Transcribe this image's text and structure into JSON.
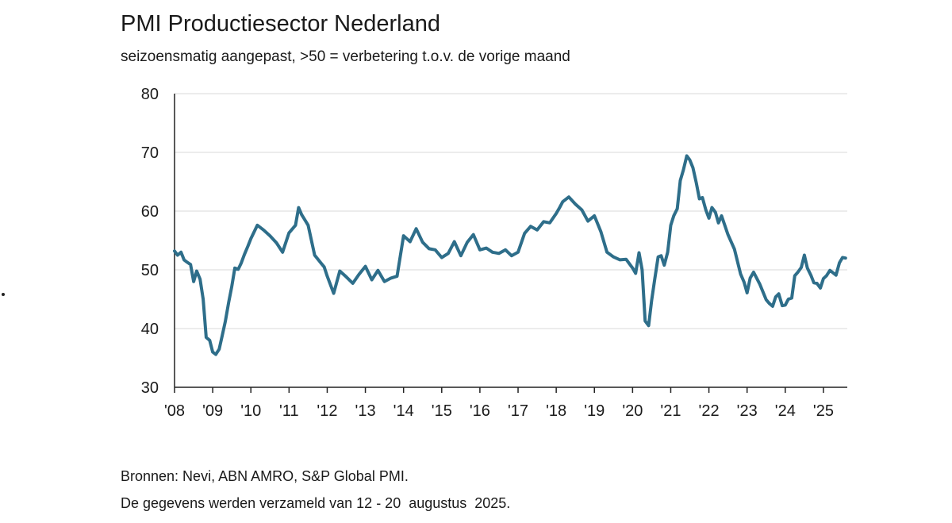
{
  "chart_data": {
    "type": "line",
    "title": "PMI Productiesector Nederland",
    "subtitle": "seizoensmatig aangepast, >50 = verbetering t.o.v. de vorige maand",
    "xlabel": "",
    "ylabel": "",
    "xlim": [
      2008.0,
      2025.625
    ],
    "ylim": [
      30,
      80
    ],
    "yticks": [
      30,
      40,
      50,
      60,
      70,
      80
    ],
    "xtick_labels": [
      "'08",
      "'09",
      "'10",
      "'11",
      "'12",
      "'13",
      "'14",
      "'15",
      "'16",
      "'17",
      "'18",
      "'19",
      "'20",
      "'21",
      "'22",
      "'23",
      "'24",
      "'25"
    ],
    "grid": "horizontal",
    "color": "#2e6e8a",
    "series": [
      {
        "x": [
          2008.0,
          2008.08,
          2008.17,
          2008.25,
          2008.33,
          2008.42,
          2008.5,
          2008.58,
          2008.67,
          2008.75,
          2008.83,
          2008.92,
          2009.0,
          2009.08,
          2009.17,
          2009.25,
          2009.33,
          2009.42,
          2009.5,
          2009.58,
          2009.67,
          2009.75,
          2009.83,
          2009.92,
          2010.0,
          2010.17,
          2010.33,
          2010.5,
          2010.67,
          2010.83,
          2011.0,
          2011.17,
          2011.25,
          2011.33,
          2011.5,
          2011.67,
          2011.83,
          2011.92,
          2012.0,
          2012.17,
          2012.33,
          2012.5,
          2012.67,
          2012.83,
          2013.0,
          2013.17,
          2013.33,
          2013.5,
          2013.67,
          2013.83,
          2014.0,
          2014.17,
          2014.33,
          2014.5,
          2014.67,
          2014.83,
          2015.0,
          2015.17,
          2015.33,
          2015.5,
          2015.67,
          2015.83,
          2016.0,
          2016.17,
          2016.33,
          2016.5,
          2016.67,
          2016.83,
          2017.0,
          2017.17,
          2017.33,
          2017.5,
          2017.67,
          2017.83,
          2018.0,
          2018.08,
          2018.17,
          2018.33,
          2018.5,
          2018.67,
          2018.83,
          2019.0,
          2019.17,
          2019.33,
          2019.5,
          2019.67,
          2019.83,
          2020.0,
          2020.08,
          2020.17,
          2020.25,
          2020.33,
          2020.42,
          2020.5,
          2020.58,
          2020.67,
          2020.75,
          2020.83,
          2020.92,
          2021.0,
          2021.08,
          2021.17,
          2021.25,
          2021.33,
          2021.42,
          2021.5,
          2021.58,
          2021.67,
          2021.75,
          2021.83,
          2021.92,
          2022.0,
          2022.08,
          2022.17,
          2022.25,
          2022.33,
          2022.5,
          2022.67,
          2022.83,
          2022.92,
          2023.0,
          2023.08,
          2023.17,
          2023.33,
          2023.5,
          2023.58,
          2023.67,
          2023.75,
          2023.83,
          2023.92,
          2024.0,
          2024.08,
          2024.17,
          2024.25,
          2024.33,
          2024.42,
          2024.5,
          2024.58,
          2024.67,
          2024.75,
          2024.83,
          2024.92,
          2025.0,
          2025.08,
          2025.17,
          2025.25,
          2025.33,
          2025.42,
          2025.5,
          2025.58
        ],
        "y": [
          53.2,
          52.5,
          53.0,
          51.7,
          51.3,
          50.9,
          48.0,
          49.8,
          48.4,
          45.0,
          38.5,
          38.0,
          36.0,
          35.6,
          36.5,
          38.8,
          41.2,
          44.5,
          47.2,
          50.3,
          50.1,
          51.2,
          52.6,
          54.0,
          55.3,
          57.6,
          56.8,
          55.8,
          54.6,
          53.0,
          56.3,
          57.6,
          60.6,
          59.4,
          57.6,
          52.5,
          51.2,
          50.5,
          48.9,
          46.0,
          49.8,
          48.8,
          47.7,
          49.2,
          50.6,
          48.3,
          49.9,
          48.0,
          48.6,
          48.9,
          55.8,
          54.8,
          57.0,
          54.7,
          53.6,
          53.4,
          52.1,
          52.8,
          54.8,
          52.4,
          54.7,
          56.0,
          53.4,
          53.7,
          53.0,
          52.8,
          53.4,
          52.4,
          53.0,
          56.2,
          57.4,
          56.8,
          58.2,
          58.0,
          59.6,
          60.5,
          61.6,
          62.4,
          61.2,
          60.2,
          58.3,
          59.2,
          56.5,
          53.0,
          52.2,
          51.7,
          51.8,
          50.3,
          49.4,
          52.9,
          50.0,
          41.3,
          40.5,
          44.8,
          48.4,
          52.2,
          52.4,
          50.8,
          53.0,
          57.6,
          59.2,
          60.4,
          65.2,
          67.0,
          69.4,
          68.7,
          67.4,
          64.8,
          62.1,
          62.3,
          60.2,
          58.8,
          60.6,
          59.8,
          58.0,
          59.2,
          56.0,
          53.5,
          49.3,
          47.9,
          46.1,
          48.6,
          49.6,
          47.6,
          44.9,
          44.3,
          43.8,
          45.4,
          45.9,
          43.9,
          44.0,
          45.0,
          45.2,
          49.0,
          49.6,
          50.4,
          52.5,
          50.3,
          49.1,
          47.8,
          47.7,
          46.9,
          48.5,
          49.0,
          49.9,
          49.5,
          49.1,
          51.2,
          52.1,
          52.0
        ]
      }
    ]
  },
  "footer": {
    "source": "Bronnen: Nevi, ABN AMRO, S&P Global PMI.",
    "note": "De gegevens werden verzameld van 12 - 20  augustus  2025."
  }
}
